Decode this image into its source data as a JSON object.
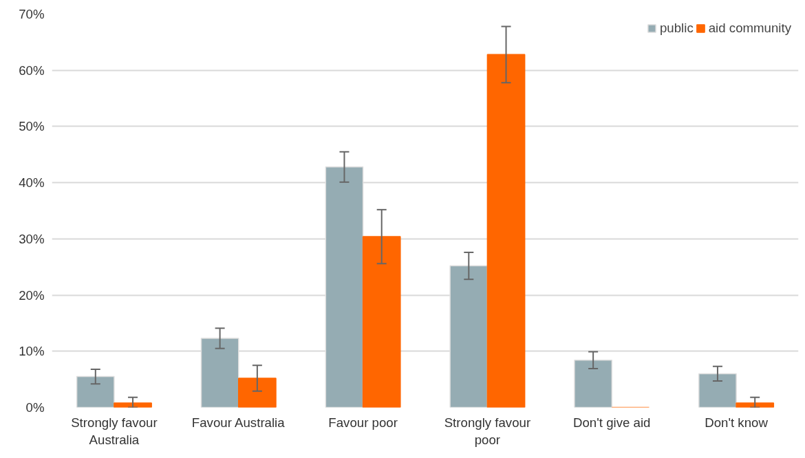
{
  "chart_data": {
    "type": "bar",
    "categories": [
      "Strongly favour Australia",
      "Favour Australia",
      "Favour poor",
      "Strongly favour poor",
      "Don't give aid",
      "Don't know"
    ],
    "series": [
      {
        "name": "public",
        "color": "#95acb3",
        "values": [
          5.5,
          12.3,
          42.8,
          25.2,
          8.4,
          6.0
        ],
        "errors": [
          1.3,
          1.8,
          2.7,
          2.4,
          1.5,
          1.3
        ]
      },
      {
        "name": "aid community",
        "color": "#ff6600",
        "values": [
          0.8,
          5.2,
          30.4,
          62.8,
          0,
          0.8
        ],
        "errors": [
          [
            0,
            1.8
          ],
          [
            2.9,
            7.5
          ],
          [
            25.6,
            35.2
          ],
          [
            57.8,
            67.8
          ],
          null,
          [
            0,
            1.8
          ]
        ]
      }
    ],
    "ylim": [
      0,
      70
    ],
    "yticks": [
      {
        "value": 0,
        "label": "0%"
      },
      {
        "value": 10,
        "label": "10%"
      },
      {
        "value": 20,
        "label": "20%"
      },
      {
        "value": 30,
        "label": "30%"
      },
      {
        "value": 40,
        "label": "40%"
      },
      {
        "value": 50,
        "label": "50%"
      },
      {
        "value": 60,
        "label": "60%"
      },
      {
        "value": 70,
        "label": "70%"
      }
    ],
    "grid": "y",
    "legend": "top right"
  }
}
